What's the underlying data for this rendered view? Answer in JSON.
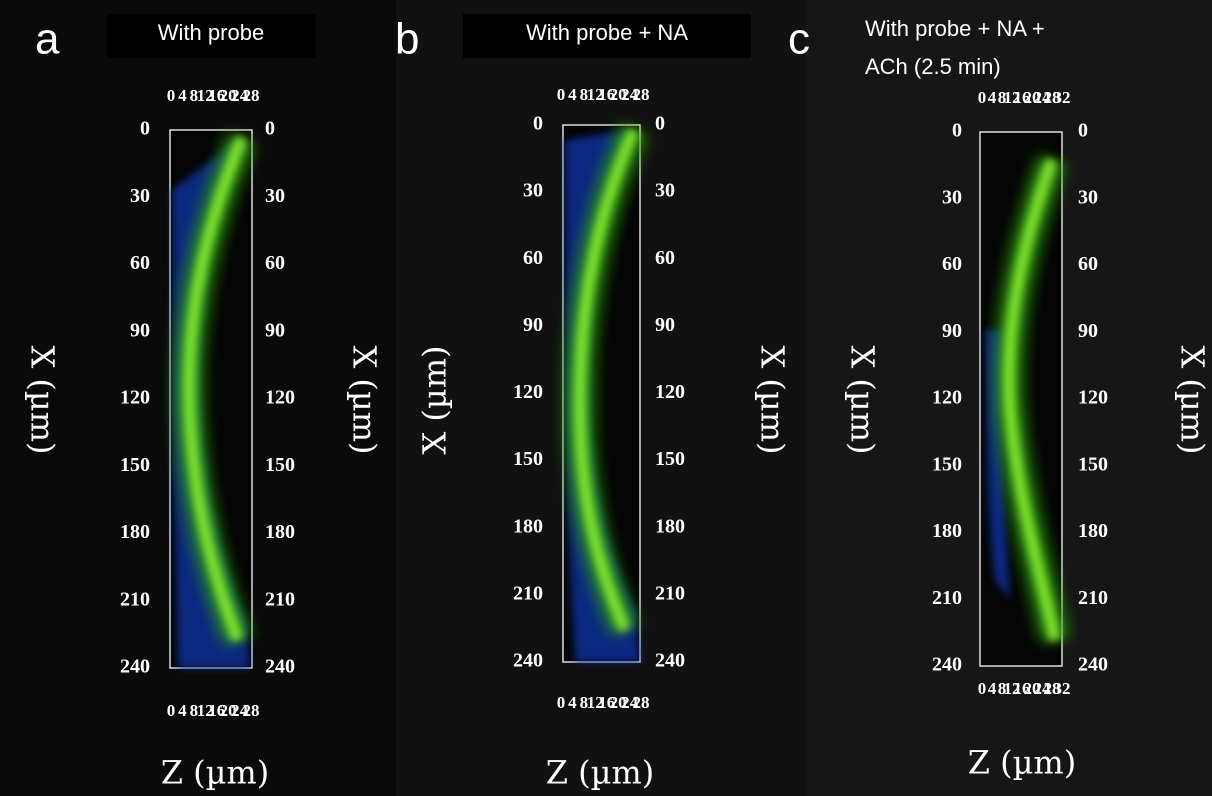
{
  "panels": [
    {
      "letter": "a",
      "title": [
        "With probe"
      ],
      "y_label": "X (µm)",
      "x_label": "Z (µm)",
      "yticks": [
        0,
        30,
        60,
        90,
        120,
        150,
        180,
        210,
        240
      ],
      "ylim": [
        0,
        240
      ],
      "zticks": [
        0,
        4,
        8,
        12,
        16,
        20,
        24,
        28
      ]
    },
    {
      "letter": "b",
      "title": [
        "With probe + NA"
      ],
      "y_label": "X (µm)",
      "x_label": "Z (µm)",
      "yticks": [
        0,
        30,
        60,
        90,
        120,
        150,
        180,
        210,
        240
      ],
      "ylim": [
        0,
        240
      ],
      "zticks": [
        0,
        4,
        8,
        12,
        16,
        20,
        24,
        28
      ]
    },
    {
      "letter": "c",
      "title": [
        "With probe + NA +",
        "ACh (2.5 min)"
      ],
      "y_label": "X (µm)",
      "x_label": "Z (µm)",
      "yticks": [
        0,
        30,
        60,
        90,
        120,
        150,
        180,
        210,
        240
      ],
      "ylim": [
        0,
        240
      ],
      "zticks": [
        0,
        4,
        8,
        12,
        16,
        20,
        24,
        28,
        32
      ]
    }
  ]
}
